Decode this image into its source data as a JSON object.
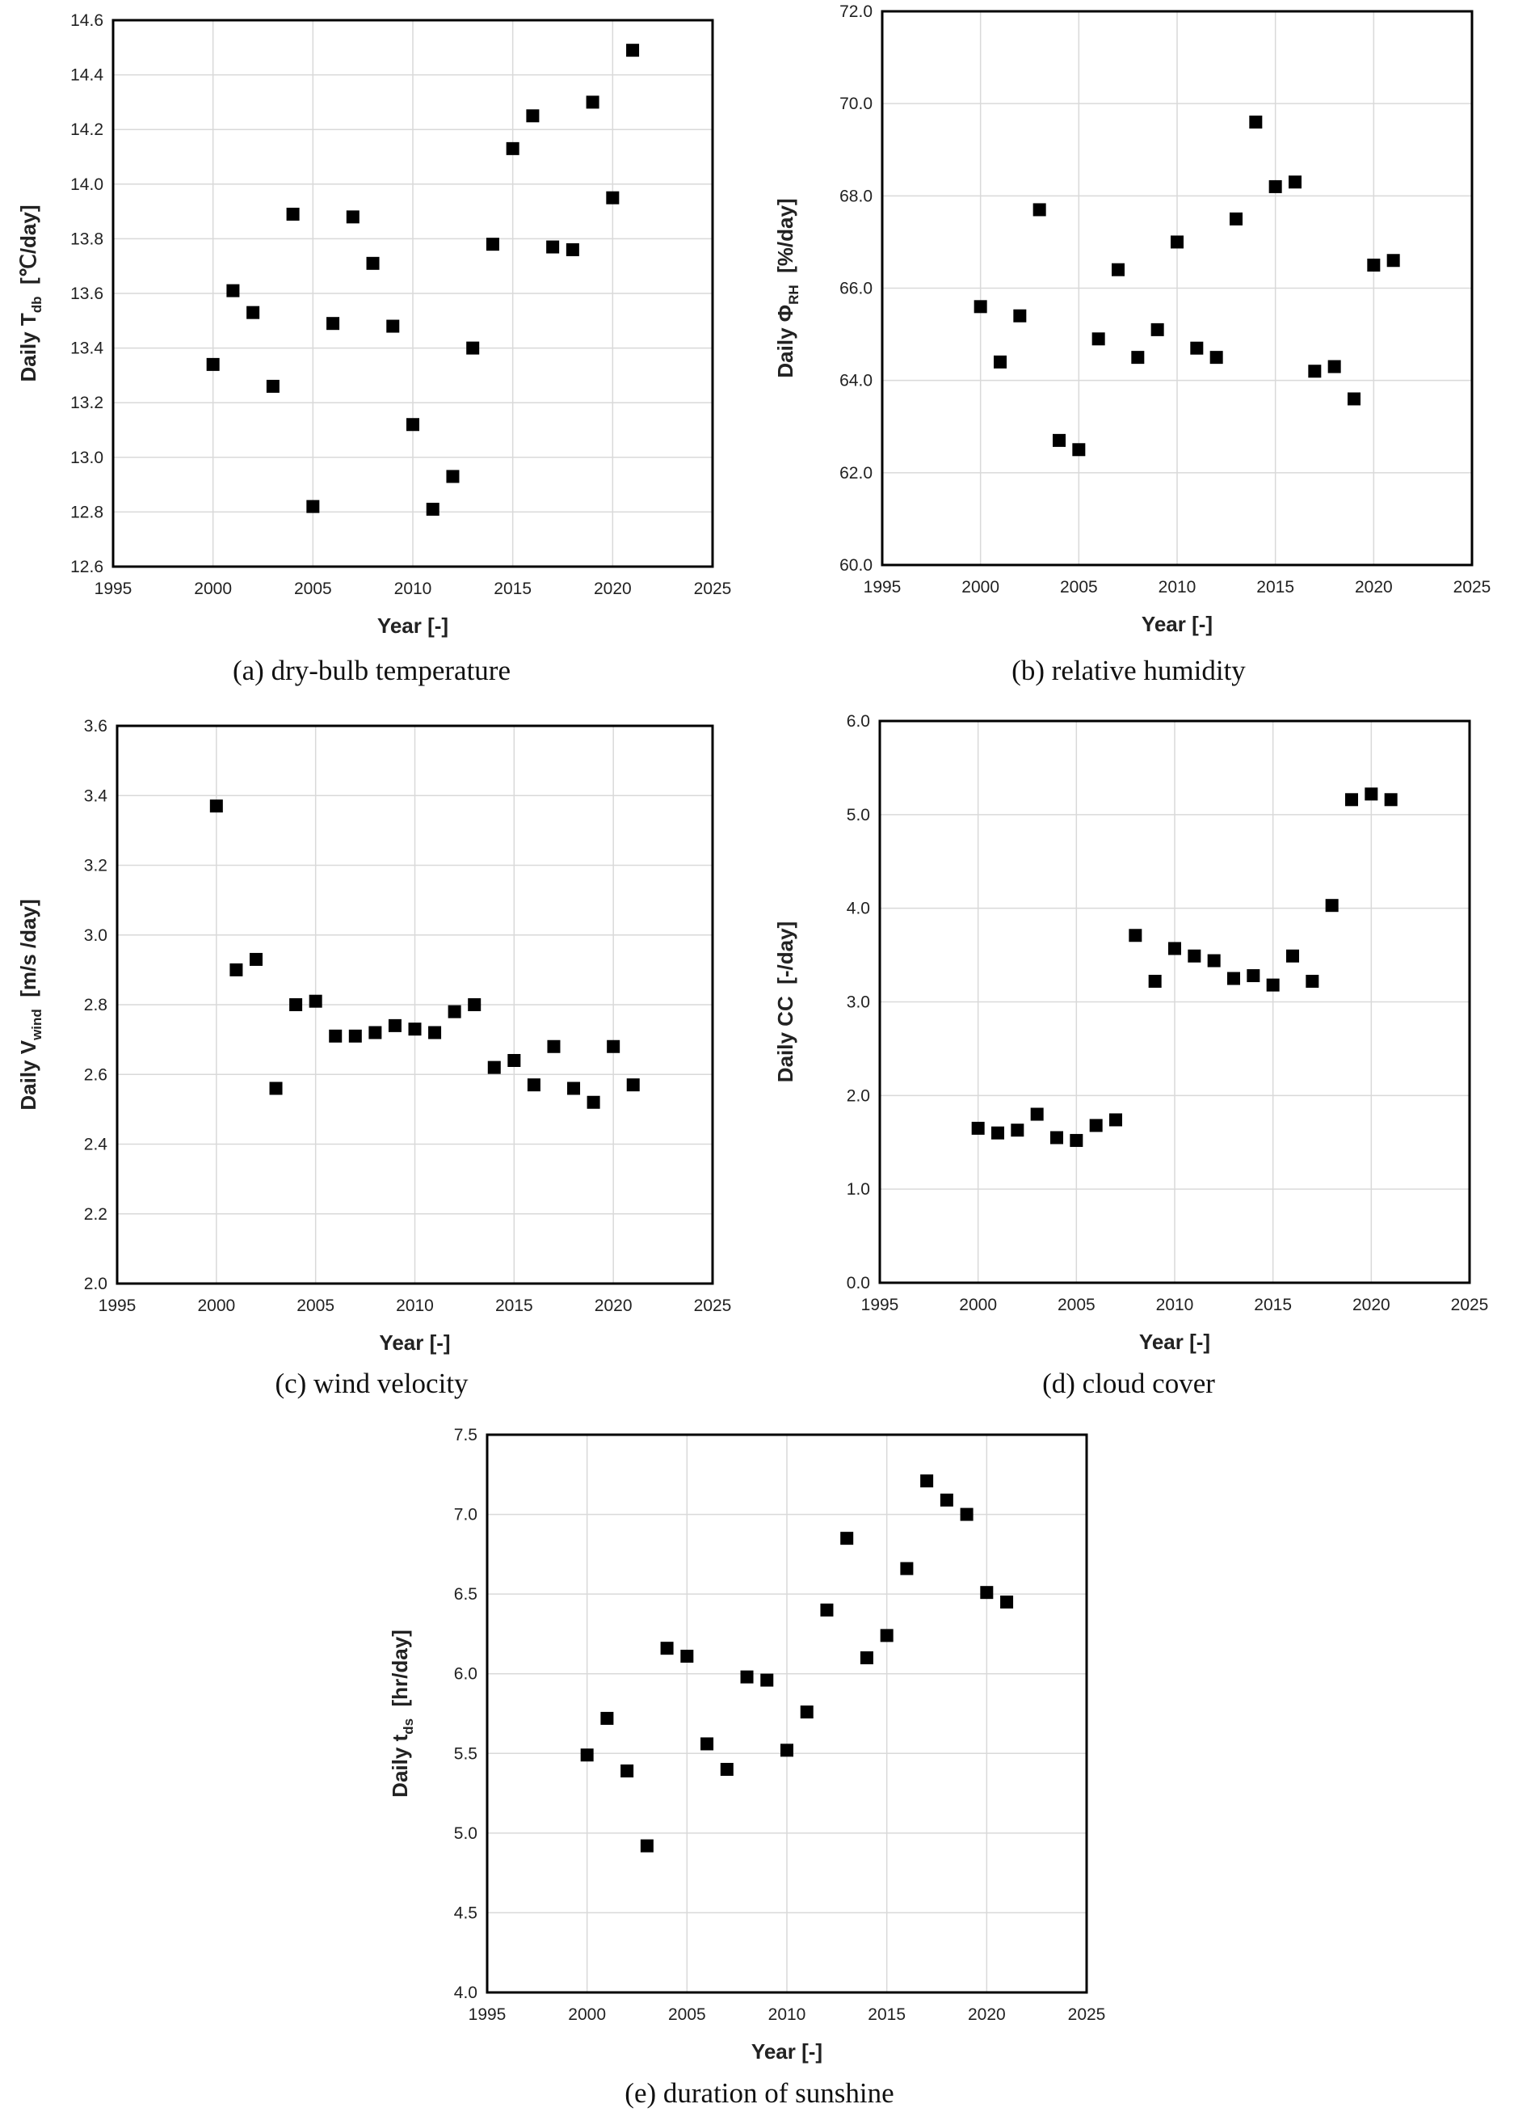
{
  "chart_data": [
    {
      "id": "a",
      "type": "scatter",
      "caption": "(a) dry-bulb temperature",
      "xlabel": "Year [-]",
      "ylabel": {
        "pre": "Daily T",
        "sub": "db",
        "post": "[℃/day]"
      },
      "xlim": [
        1995,
        2025
      ],
      "ylim": [
        12.6,
        14.6
      ],
      "xticks": [
        1995,
        2000,
        2005,
        2010,
        2015,
        2020,
        2025
      ],
      "yticks": [
        "12.6",
        "12.8",
        "13.0",
        "13.2",
        "13.4",
        "13.6",
        "13.8",
        "14.0",
        "14.2",
        "14.4",
        "14.6"
      ],
      "grid": true,
      "x": [
        2000,
        2001,
        2002,
        2003,
        2004,
        2005,
        2006,
        2007,
        2008,
        2009,
        2010,
        2011,
        2012,
        2013,
        2014,
        2015,
        2016,
        2017,
        2018,
        2019,
        2020,
        2021
      ],
      "y": [
        13.34,
        13.61,
        13.53,
        13.26,
        13.89,
        12.82,
        13.49,
        13.88,
        13.71,
        13.48,
        13.12,
        12.81,
        12.93,
        13.4,
        13.78,
        14.13,
        14.25,
        13.77,
        13.76,
        14.3,
        13.95,
        14.49
      ]
    },
    {
      "id": "b",
      "type": "scatter",
      "caption": "(b) relative humidity",
      "xlabel": "Year [-]",
      "ylabel": {
        "pre": "Daily Φ",
        "sub": "RH",
        "post": "[%/day]"
      },
      "xlim": [
        1995,
        2025
      ],
      "ylim": [
        60.0,
        72.0
      ],
      "xticks": [
        1995,
        2000,
        2005,
        2010,
        2015,
        2020,
        2025
      ],
      "yticks": [
        "60.0",
        "62.0",
        "64.0",
        "66.0",
        "68.0",
        "70.0",
        "72.0"
      ],
      "grid": true,
      "x": [
        2000,
        2001,
        2002,
        2003,
        2004,
        2005,
        2006,
        2007,
        2008,
        2009,
        2010,
        2011,
        2012,
        2013,
        2014,
        2015,
        2016,
        2017,
        2018,
        2019,
        2020,
        2021
      ],
      "y": [
        65.6,
        64.4,
        65.4,
        67.7,
        62.7,
        62.5,
        64.9,
        66.4,
        64.5,
        65.1,
        67.0,
        64.7,
        64.5,
        67.5,
        69.6,
        68.2,
        68.3,
        64.2,
        64.3,
        63.6,
        66.5,
        66.6
      ]
    },
    {
      "id": "c",
      "type": "scatter",
      "caption": "(c) wind velocity",
      "xlabel": "Year [-]",
      "ylabel": {
        "pre": "Daily V",
        "sub": "wind",
        "post": "[m/s /day]"
      },
      "xlim": [
        1995,
        2025
      ],
      "ylim": [
        2.0,
        3.6
      ],
      "xticks": [
        1995,
        2000,
        2005,
        2010,
        2015,
        2020,
        2025
      ],
      "yticks": [
        "2.0",
        "2.2",
        "2.4",
        "2.6",
        "2.8",
        "3.0",
        "3.2",
        "3.4",
        "3.6"
      ],
      "grid": true,
      "x": [
        2000,
        2001,
        2002,
        2003,
        2004,
        2005,
        2006,
        2007,
        2008,
        2009,
        2010,
        2011,
        2012,
        2013,
        2014,
        2015,
        2016,
        2017,
        2018,
        2019,
        2020,
        2021
      ],
      "y": [
        3.37,
        2.9,
        2.93,
        2.56,
        2.8,
        2.81,
        2.71,
        2.71,
        2.72,
        2.74,
        2.73,
        2.72,
        2.78,
        2.8,
        2.62,
        2.64,
        2.57,
        2.68,
        2.56,
        2.52,
        2.68,
        2.57
      ]
    },
    {
      "id": "d",
      "type": "scatter",
      "caption": "(d) cloud cover",
      "xlabel": "Year [-]",
      "ylabel": {
        "pre": "Daily CC",
        "sub": "",
        "post": "[-/day]"
      },
      "xlim": [
        1995,
        2025
      ],
      "ylim": [
        0.0,
        6.0
      ],
      "xticks": [
        1995,
        2000,
        2005,
        2010,
        2015,
        2020,
        2025
      ],
      "yticks": [
        "0.0",
        "1.0",
        "2.0",
        "3.0",
        "4.0",
        "5.0",
        "6.0"
      ],
      "grid": true,
      "x": [
        2000,
        2001,
        2002,
        2003,
        2004,
        2005,
        2006,
        2007,
        2008,
        2009,
        2010,
        2011,
        2012,
        2013,
        2014,
        2015,
        2016,
        2017,
        2018,
        2019,
        2020,
        2021
      ],
      "y": [
        1.65,
        1.6,
        1.63,
        1.8,
        1.55,
        1.52,
        1.68,
        1.74,
        3.71,
        3.22,
        3.57,
        3.49,
        3.44,
        3.25,
        3.28,
        3.18,
        3.49,
        3.22,
        4.03,
        5.16,
        5.22,
        5.16
      ]
    },
    {
      "id": "e",
      "type": "scatter",
      "caption": "(e) duration of sunshine",
      "xlabel": "Year [-]",
      "ylabel": {
        "pre": "Daily t",
        "sub": "ds",
        "post": "[hr/day]"
      },
      "xlim": [
        1995,
        2025
      ],
      "ylim": [
        4.0,
        7.5
      ],
      "xticks": [
        1995,
        2000,
        2005,
        2010,
        2015,
        2020,
        2025
      ],
      "yticks": [
        "4.0",
        "4.5",
        "5.0",
        "5.5",
        "6.0",
        "6.5",
        "7.0",
        "7.5"
      ],
      "grid": true,
      "x": [
        2000,
        2001,
        2002,
        2003,
        2004,
        2005,
        2006,
        2007,
        2008,
        2009,
        2010,
        2011,
        2012,
        2013,
        2014,
        2015,
        2016,
        2017,
        2018,
        2019,
        2020,
        2021
      ],
      "y": [
        5.49,
        5.72,
        5.39,
        4.92,
        6.16,
        6.11,
        5.56,
        5.4,
        5.98,
        5.96,
        5.52,
        5.76,
        6.4,
        6.85,
        6.1,
        6.24,
        6.66,
        7.21,
        7.09,
        7.0,
        6.51,
        6.45
      ]
    }
  ]
}
